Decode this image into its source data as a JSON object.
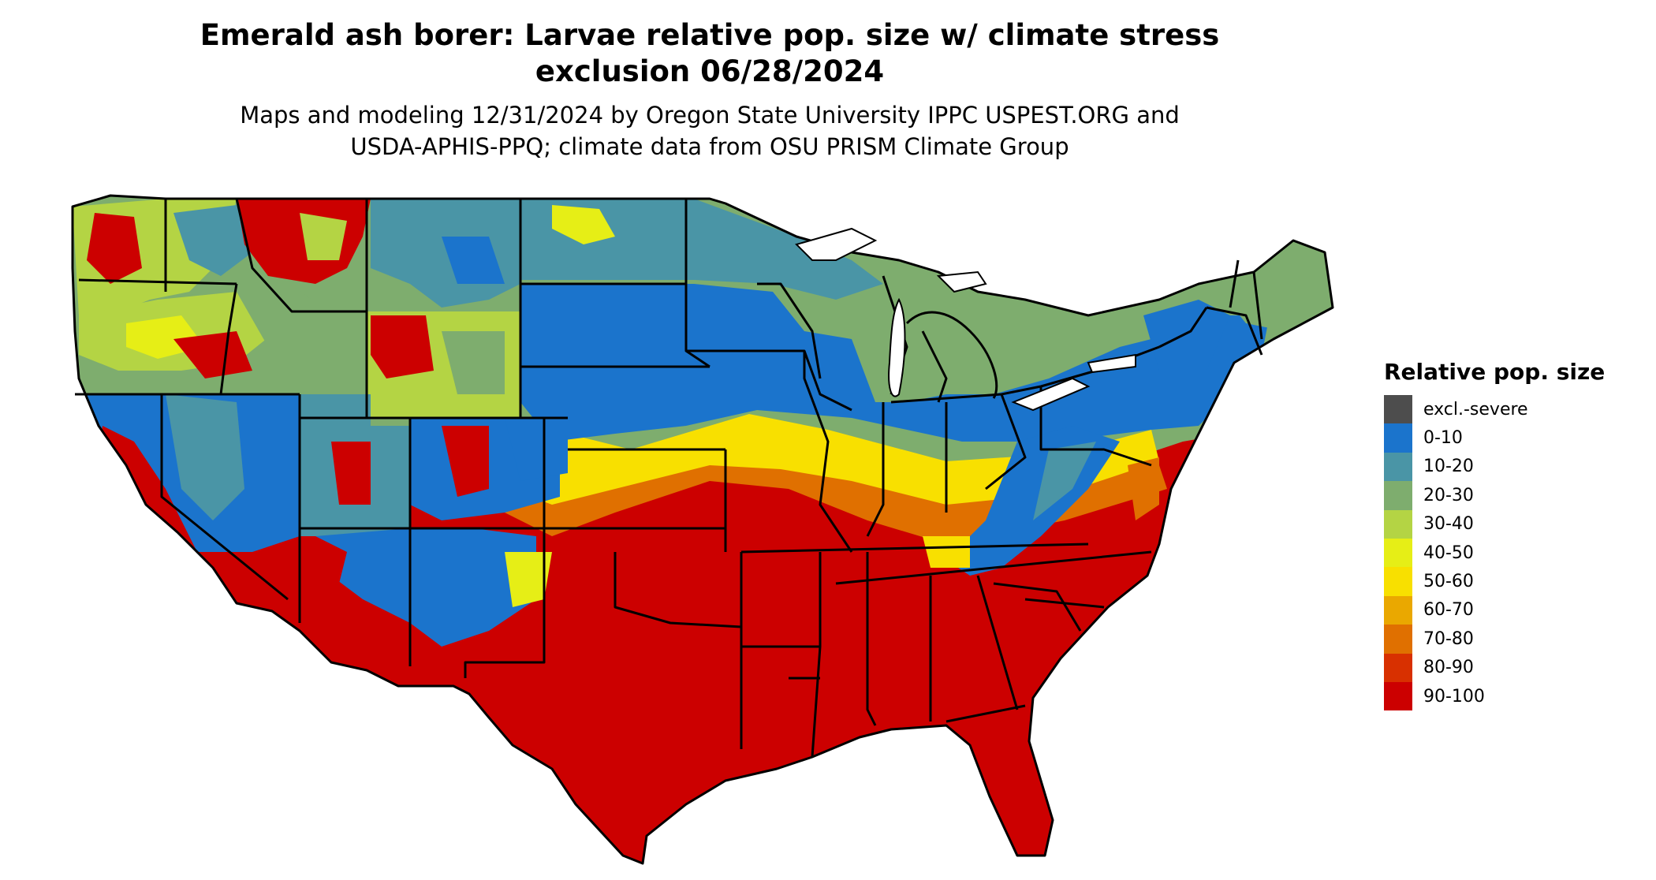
{
  "title": {
    "line1": "Emerald ash borer: Larvae relative pop. size w/ climate stress",
    "line2": "exclusion 06/28/2024"
  },
  "subtitle": {
    "line1": "Maps and modeling 12/31/2024 by Oregon State University IPPC USPEST.ORG and",
    "line2": "USDA-APHIS-PPQ; climate data from OSU PRISM Climate Group"
  },
  "legend": {
    "title": "Relative pop. size",
    "items": [
      {
        "label": "excl.-severe",
        "color": "#4d4d4d"
      },
      {
        "label": "0-10",
        "color": "#1b74cc"
      },
      {
        "label": "10-20",
        "color": "#4a95a6"
      },
      {
        "label": "20-30",
        "color": "#7ead6e"
      },
      {
        "label": "30-40",
        "color": "#b4d444"
      },
      {
        "label": "40-50",
        "color": "#e6ee16"
      },
      {
        "label": "50-60",
        "color": "#f8e000"
      },
      {
        "label": "60-70",
        "color": "#eaa800"
      },
      {
        "label": "70-80",
        "color": "#e07000"
      },
      {
        "label": "80-90",
        "color": "#d83000"
      },
      {
        "label": "90-100",
        "color": "#cc0000"
      }
    ]
  },
  "map": {
    "region": "Conterminous United States",
    "outline_color": "#000000"
  }
}
